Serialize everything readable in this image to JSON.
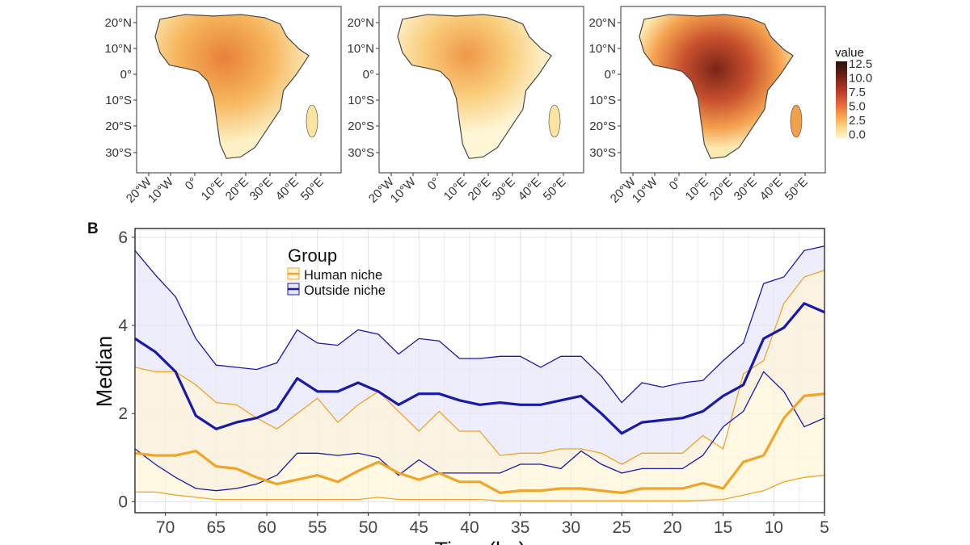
{
  "panel_label": "B",
  "maps": {
    "lat_labels": [
      "20°N",
      "10°N",
      "0°",
      "10°S",
      "20°S",
      "30°S"
    ],
    "lon_labels": [
      "20°W",
      "10°W",
      "0°",
      "10°E",
      "20°E",
      "30°E",
      "40°E",
      "50°E"
    ],
    "colorbar": {
      "title": "value",
      "ticks": [
        "12.5",
        "10.0",
        "7.5",
        "5.0",
        "2.5",
        "0.0"
      ],
      "colors": [
        "#2a120a",
        "#6b1f14",
        "#b83a2a",
        "#e8663a",
        "#f7a94e",
        "#fcd98a",
        "#fff8d0"
      ]
    }
  },
  "chart_data": {
    "type": "line",
    "title": "",
    "xlabel": "Time (ka)",
    "ylabel": "Median",
    "xlim": [
      73,
      5
    ],
    "ylim": [
      -0.25,
      6.2
    ],
    "x_ticks": [
      70,
      65,
      60,
      55,
      50,
      45,
      40,
      35,
      30,
      25,
      20,
      15,
      10,
      5
    ],
    "y_ticks": [
      0,
      2,
      4,
      6
    ],
    "x_tick_labels": [
      "70",
      "65",
      "60",
      "55",
      "50",
      "45",
      "40",
      "35",
      "30",
      "25",
      "20",
      "15",
      "10",
      "5"
    ],
    "y_tick_labels": [
      "0",
      "2",
      "4",
      "6"
    ],
    "legend": {
      "title": "Group",
      "position": "top-left"
    },
    "x": [
      73,
      71,
      69,
      67,
      65,
      63,
      61,
      59,
      57,
      55,
      53,
      51,
      49,
      47,
      45,
      43,
      41,
      39,
      37,
      35,
      33,
      31,
      29,
      27,
      25,
      23,
      21,
      19,
      17,
      15,
      13,
      11,
      9,
      7,
      5
    ],
    "series": [
      {
        "name": "Human niche",
        "color": "#f0a428",
        "fill": "#fff5d6",
        "median": [
          1.1,
          1.05,
          1.05,
          1.15,
          0.8,
          0.75,
          0.55,
          0.4,
          0.5,
          0.6,
          0.45,
          0.7,
          0.9,
          0.65,
          0.5,
          0.65,
          0.45,
          0.45,
          0.2,
          0.25,
          0.25,
          0.3,
          0.3,
          0.25,
          0.2,
          0.3,
          0.3,
          0.3,
          0.42,
          0.3,
          0.9,
          1.05,
          1.9,
          2.4,
          2.45
        ],
        "upper": [
          3.05,
          2.95,
          2.95,
          2.65,
          2.25,
          2.2,
          1.9,
          1.65,
          2.0,
          2.35,
          1.8,
          2.2,
          2.5,
          2.05,
          1.6,
          2.05,
          1.6,
          1.6,
          1.05,
          1.1,
          1.1,
          1.2,
          1.2,
          1.1,
          0.85,
          1.1,
          1.1,
          1.1,
          1.5,
          1.2,
          2.9,
          3.2,
          4.5,
          5.1,
          5.25
        ],
        "lower": [
          0.22,
          0.22,
          0.15,
          0.1,
          0.05,
          0.05,
          0.05,
          0.05,
          0.05,
          0.05,
          0.05,
          0.05,
          0.1,
          0.05,
          0.05,
          0.05,
          0.05,
          0.05,
          0.02,
          0.02,
          0.02,
          0.02,
          0.02,
          0.02,
          0.02,
          0.02,
          0.02,
          0.02,
          0.03,
          0.05,
          0.15,
          0.25,
          0.45,
          0.55,
          0.6
        ]
      },
      {
        "name": "Outside niche",
        "color": "#1a1aa8",
        "fill": "#e6e6fb",
        "median": [
          3.7,
          3.4,
          2.95,
          1.95,
          1.65,
          1.8,
          1.9,
          2.1,
          2.8,
          2.5,
          2.5,
          2.7,
          2.5,
          2.2,
          2.45,
          2.45,
          2.3,
          2.2,
          2.25,
          2.2,
          2.2,
          2.3,
          2.4,
          2.0,
          1.55,
          1.8,
          1.85,
          1.9,
          2.05,
          2.4,
          2.65,
          3.7,
          3.95,
          4.5,
          4.3
        ],
        "upper": [
          5.7,
          5.15,
          4.65,
          3.7,
          3.1,
          3.05,
          3.0,
          3.15,
          3.9,
          3.6,
          3.55,
          3.9,
          3.8,
          3.35,
          3.7,
          3.65,
          3.25,
          3.25,
          3.3,
          3.3,
          3.05,
          3.3,
          3.3,
          2.85,
          2.25,
          2.7,
          2.6,
          2.7,
          2.75,
          3.2,
          3.6,
          4.95,
          5.1,
          5.7,
          5.8
        ],
        "lower": [
          1.2,
          0.85,
          0.55,
          0.3,
          0.25,
          0.3,
          0.4,
          0.6,
          1.1,
          1.1,
          1.05,
          1.1,
          1.0,
          0.6,
          0.95,
          0.65,
          0.65,
          0.65,
          0.65,
          0.85,
          0.85,
          0.75,
          1.15,
          0.85,
          0.65,
          0.75,
          0.75,
          0.75,
          1.05,
          1.7,
          2.05,
          2.95,
          2.5,
          1.7,
          1.9
        ]
      }
    ]
  }
}
